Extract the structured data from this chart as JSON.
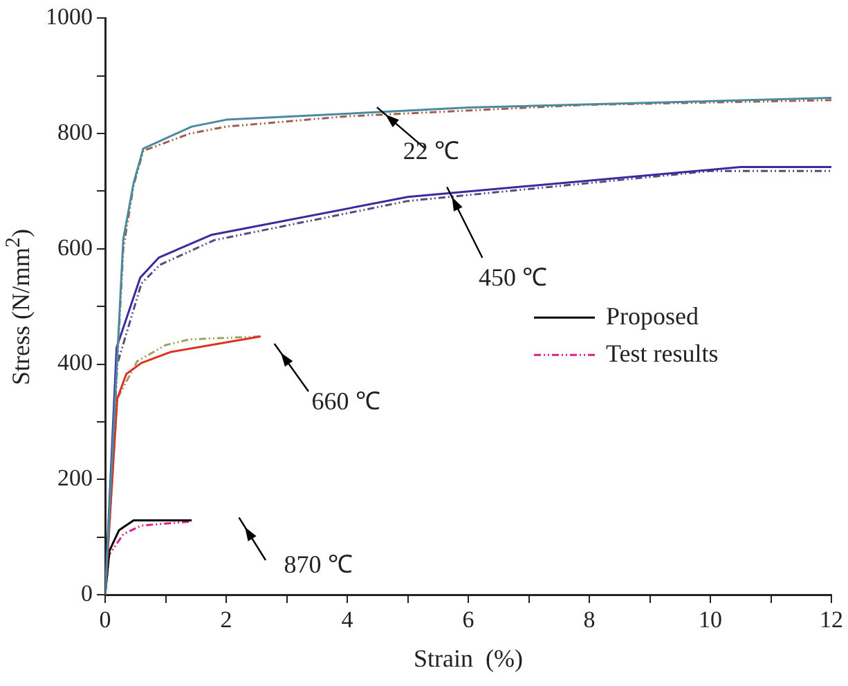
{
  "chart_data": {
    "type": "line",
    "xlabel": "Strain  (%)",
    "ylabel": "Stress (N/mm$^{2}$)",
    "xlim": [
      0,
      12
    ],
    "ylim": [
      0,
      1000
    ],
    "xticks": [
      0,
      {
        "value": 1,
        "label": null
      },
      2,
      {
        "value": 3,
        "label": null
      },
      4,
      {
        "value": 5,
        "label": null
      },
      6,
      {
        "value": 7,
        "label": null
      },
      8,
      {
        "value": 9,
        "label": null
      },
      10,
      {
        "value": 11,
        "label": null
      },
      12
    ],
    "yticks": [
      0,
      {
        "value": 100,
        "label": null
      },
      200,
      {
        "value": 300,
        "label": null
      },
      400,
      {
        "value": 500,
        "label": null
      },
      600,
      {
        "value": 700,
        "label": null
      },
      800,
      {
        "value": 900,
        "label": null
      },
      1000
    ],
    "grid": false,
    "legend": "right",
    "marker": "none",
    "series": [
      {
        "color": "#4a8aa0",
        "line_style": "solid",
        "x": [
          0,
          0.3,
          0.47,
          0.63,
          1.43,
          2.0,
          6,
          12
        ],
        "values": [
          0,
          617,
          714,
          774,
          812,
          824,
          845,
          862
        ]
      },
      {
        "color": "#a0604a",
        "line_style": "dashed",
        "x": [
          0,
          0.3,
          0.47,
          0.63,
          1.4,
          2,
          4,
          8,
          12
        ],
        "values": [
          0,
          600,
          710,
          770,
          800,
          812,
          830,
          850,
          858
        ]
      },
      {
        "color": "#3a2aa0",
        "line_style": "solid",
        "x": [
          0,
          0.19,
          0.58,
          0.89,
          1.75,
          5,
          10.5,
          12
        ],
        "values": [
          0,
          429,
          550,
          585,
          624,
          690,
          742,
          742
        ]
      },
      {
        "color": "#5a4a80",
        "line_style": "dashed",
        "x": [
          0,
          0.2,
          0.6,
          0.9,
          1.8,
          5,
          10,
          12
        ],
        "values": [
          0,
          400,
          540,
          572,
          615,
          683,
          735,
          735
        ]
      },
      {
        "color": "#e03020",
        "line_style": "solid",
        "x": [
          0,
          0.2,
          0.35,
          0.6,
          1.08,
          2.57
        ],
        "values": [
          0,
          340,
          383,
          402,
          421,
          448
        ]
      },
      {
        "color": "#a0a060",
        "line_style": "dashed",
        "x": [
          0,
          0.2,
          0.53,
          1.0,
          1.4,
          2.57
        ],
        "values": [
          0,
          340,
          405,
          433,
          443,
          448
        ]
      },
      {
        "name": "Proposed",
        "color": "#000000",
        "line_style": "solid",
        "x": [
          0,
          0.07,
          0.23,
          0.47,
          1.43
        ],
        "values": [
          0,
          76,
          112,
          129,
          129
        ]
      },
      {
        "name": "Test results",
        "color": "#e0208a",
        "line_style": "dashed",
        "x": [
          0,
          0.07,
          0.3,
          0.6,
          1.43
        ],
        "values": [
          0,
          70,
          105,
          120,
          127
        ]
      }
    ],
    "annotations": [
      {
        "text": "22 ℃",
        "x": 4.63,
        "y": 833
      },
      {
        "text": "450 ℃",
        "x": 5.73,
        "y": 690
      },
      "660 ℃",
      "870 ℃"
    ]
  }
}
